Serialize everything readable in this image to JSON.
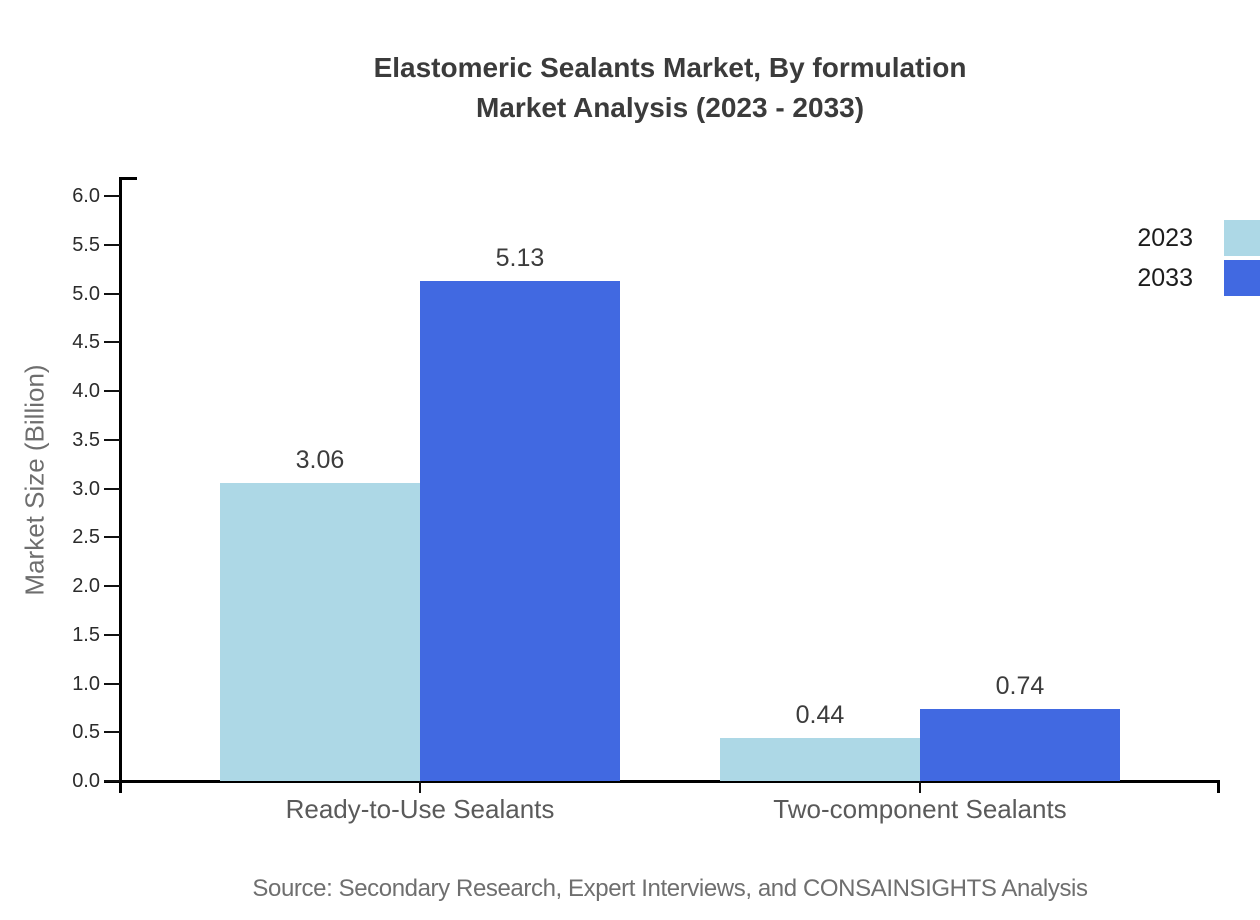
{
  "title": {
    "line1": "Elastomeric Sealants Market, By formulation",
    "line2": "Market Analysis (2023 - 2033)"
  },
  "chart_data": {
    "type": "bar",
    "title": "Elastomeric Sealants Market, By formulation Market Analysis (2023 - 2033)",
    "categories": [
      "Ready-to-Use Sealants",
      "Two-component Sealants"
    ],
    "series": [
      {
        "name": "2023",
        "color": "#ADD8E6",
        "values": [
          3.06,
          0.44
        ]
      },
      {
        "name": "2033",
        "color": "#4169E1",
        "values": [
          5.13,
          0.74
        ]
      }
    ],
    "value_label_format": "2dp",
    "xlabel": "",
    "ylabel": "Market Size (Billion)",
    "ylim": [
      0,
      6.0
    ],
    "ytick_step": 0.5,
    "grid": false,
    "legend_position": "right",
    "background": "#ffffff"
  },
  "source": "Source: Secondary Research, Expert Interviews, and CONSAINSIGHTS Analysis"
}
